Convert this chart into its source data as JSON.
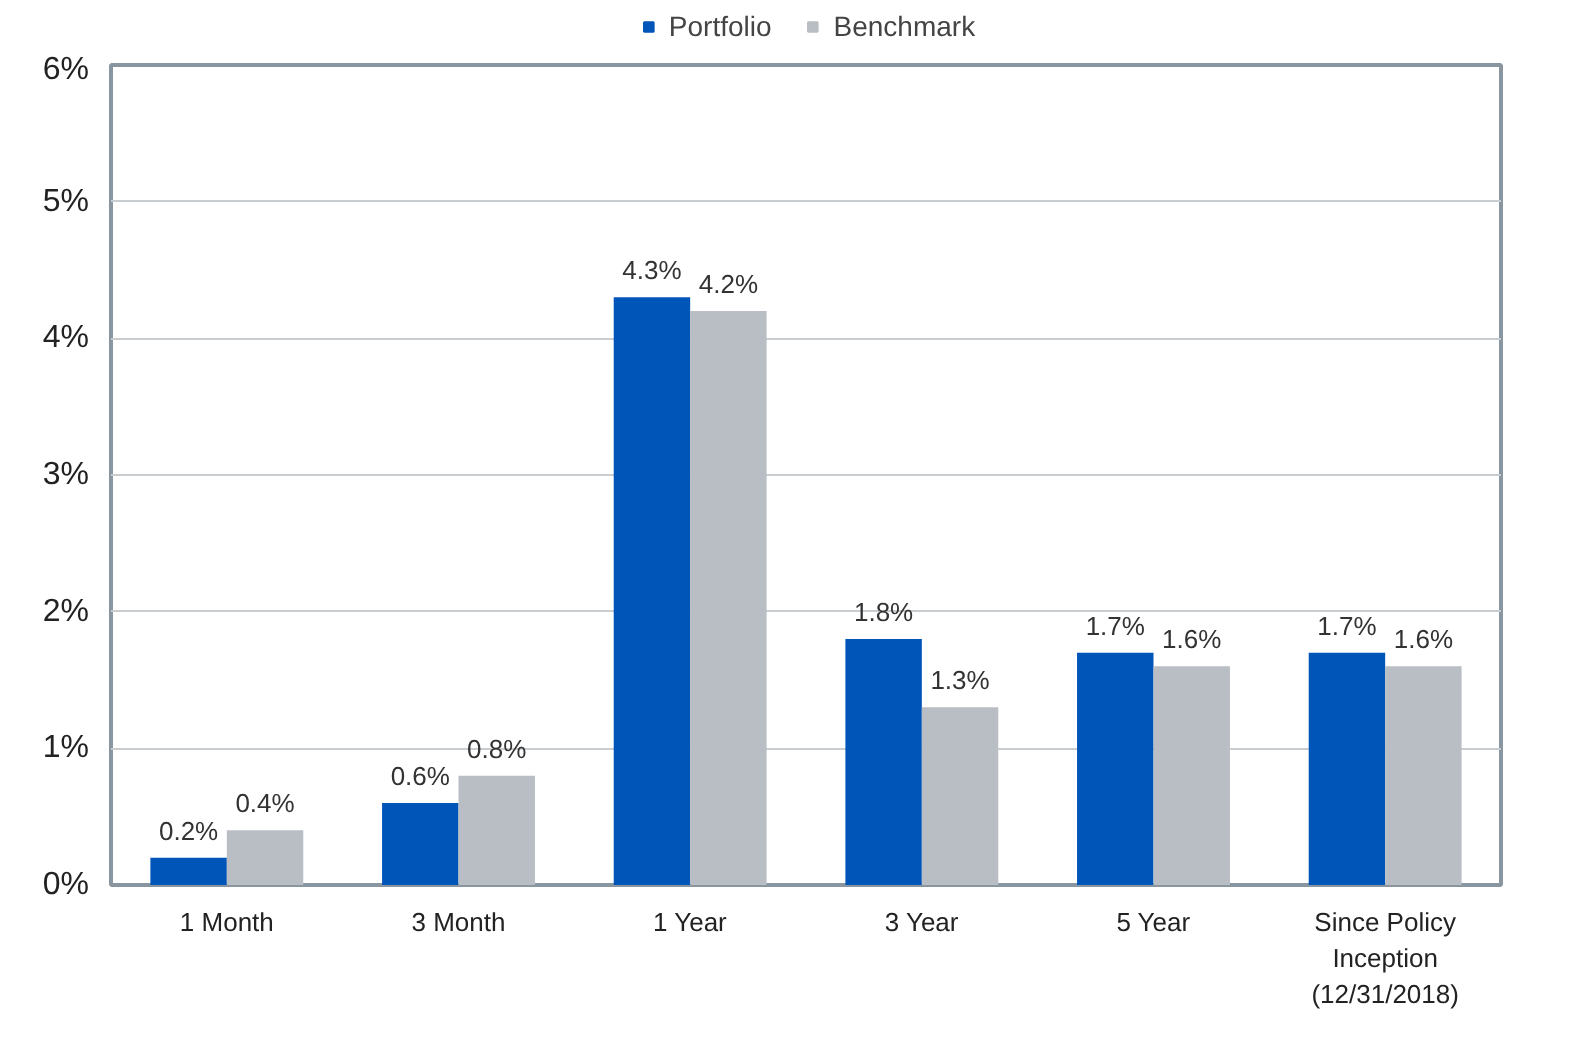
{
  "chart_data": {
    "type": "bar",
    "categories": [
      "1 Month",
      "3 Month",
      "1 Year",
      "3 Year",
      "5 Year",
      "Since Policy\nInception\n(12/31/2018)"
    ],
    "series": [
      {
        "name": "Portfolio",
        "color": "#0056b8",
        "values": [
          0.2,
          0.6,
          4.3,
          1.8,
          1.7,
          1.7
        ],
        "value_labels": [
          "0.2%",
          "0.6%",
          "4.3%",
          "1.8%",
          "1.7%",
          "1.7%"
        ]
      },
      {
        "name": "Benchmark",
        "color": "#b9bec4",
        "values": [
          0.4,
          0.8,
          4.2,
          1.3,
          1.6,
          1.6
        ],
        "value_labels": [
          "0.4%",
          "0.8%",
          "4.2%",
          "1.3%",
          "1.6%",
          "1.6%"
        ]
      }
    ],
    "ylim": [
      0,
      6
    ],
    "yticks": [
      {
        "value": 0,
        "label": "0%"
      },
      {
        "value": 1,
        "label": "1%"
      },
      {
        "value": 2,
        "label": "2%"
      },
      {
        "value": 3,
        "label": "3%"
      },
      {
        "value": 4,
        "label": "4%"
      },
      {
        "value": 5,
        "label": "5%"
      },
      {
        "value": 6,
        "label": "6%"
      }
    ],
    "grid": "y",
    "legend": "top"
  }
}
